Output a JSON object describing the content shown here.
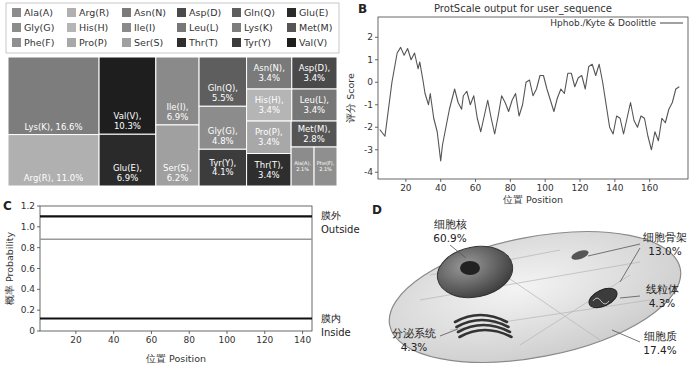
{
  "chart_data": [
    {
      "type": "treemap",
      "categories": [
        "Ala(A)",
        "Arg(R)",
        "Asn(N)",
        "Asp(D)",
        "Gln(Q)",
        "Glu(E)",
        "Gly(G)",
        "His(H)",
        "Ile(I)",
        "Leu(L)",
        "Lys(K)",
        "Met(M)",
        "Phe(F)",
        "Pro(P)",
        "Ser(S)",
        "Thr(T)",
        "Tyr(Y)",
        "Val(V)"
      ],
      "values": [
        2.1,
        11.0,
        3.4,
        3.4,
        5.5,
        6.9,
        4.8,
        3.4,
        6.9,
        3.4,
        16.6,
        2.8,
        2.1,
        3.4,
        6.2,
        3.4,
        4.1,
        10.3
      ],
      "value_labels": [
        "Ala(A), 2.1%",
        "Arg(R), 11.0%",
        "Asn(N), 3.4%",
        "Asp(D), 3.4%",
        "Gln(Q), 5.5%",
        "Glu(E), 6.9%",
        "Gly(G), 4.8%",
        "His(H), 3.4%",
        "Ile(I), 6.9%",
        "Leu(L), 3.4%",
        "Lys(K), 16.6%",
        "Met(M), 2.8%",
        "Phe(F), 2.1%",
        "Pro(P), 3.4%",
        "Ser(S), 6.2%",
        "Thr(T), 3.4%",
        "Tyr(Y), 4.1%",
        "Val(V), 10.3%"
      ],
      "colors": [
        "#8c8c8c",
        "#b0b0b0",
        "#7a7a7a",
        "#4a4a4a",
        "#5e5e5e",
        "#2a2a2a",
        "#8c8c8c",
        "#b5b5b5",
        "#8a8a8a",
        "#777777",
        "#7d7d7d",
        "#555555",
        "#8f8f8f",
        "#a8a8a8",
        "#a0a0a0",
        "#2e2e2e",
        "#3c3c3c",
        "#1e1e1e"
      ],
      "data_labels": true
    },
    {
      "panel": "B",
      "type": "line",
      "title": "ProtScale output for user_sequence",
      "x": [
        5,
        8,
        12,
        15,
        17,
        19,
        21,
        23,
        25,
        27,
        28,
        30,
        31,
        33,
        34,
        36,
        38,
        40,
        41,
        43,
        45,
        47,
        48,
        50,
        52,
        53,
        55,
        57,
        59,
        61,
        63,
        65,
        67,
        69,
        71,
        73,
        75,
        77,
        79,
        81,
        83,
        85,
        87,
        89,
        91,
        93,
        95,
        97,
        99,
        101,
        103,
        105,
        107,
        109,
        111,
        113,
        115,
        117,
        119,
        121,
        123,
        125,
        127,
        129,
        131,
        133,
        135,
        137,
        139,
        141,
        143,
        145,
        147,
        149,
        151,
        153,
        155,
        157,
        159,
        161,
        163,
        165,
        167,
        169,
        171,
        173,
        175,
        177
      ],
      "series": [
        {
          "name": "Hphob./Kyte & Doolittle",
          "color": "#555555",
          "values": [
            -2.1,
            -2.4,
            0.0,
            1.3,
            1.55,
            1.2,
            1.5,
            1.0,
            1.3,
            0.6,
            0.9,
            0.0,
            -0.5,
            -1.0,
            -0.5,
            -1.6,
            -2.2,
            -3.5,
            -2.8,
            -2.0,
            -1.2,
            -0.6,
            -0.3,
            -0.9,
            -1.2,
            -0.6,
            -0.4,
            -1.0,
            -0.6,
            -1.6,
            -2.2,
            -1.5,
            -0.8,
            -1.6,
            -2.3,
            -1.5,
            -0.6,
            -0.9,
            -1.3,
            -0.8,
            -0.5,
            -1.5,
            -1.0,
            0.0,
            0.1,
            -0.6,
            -0.3,
            0.3,
            0.3,
            -0.3,
            -0.8,
            -1.3,
            -0.7,
            -0.3,
            -0.5,
            0.4,
            0.4,
            -0.2,
            0.2,
            0.3,
            -0.3,
            0.7,
            0.8,
            0.3,
            0.8,
            0.0,
            -1.0,
            -2.0,
            -2.3,
            -1.5,
            -1.6,
            -2.3,
            -1.6,
            -0.9,
            -1.7,
            -2.0,
            -1.5,
            -1.6,
            -2.4,
            -3.0,
            -2.2,
            -2.6,
            -1.6,
            -1.8,
            -1.2,
            -0.9,
            -0.3,
            -0.2
          ]
        }
      ],
      "xlim": [
        4,
        182
      ],
      "ylim": [
        -4.3,
        2.9
      ],
      "xticks": [
        20,
        40,
        60,
        80,
        100,
        120,
        140,
        160
      ],
      "yticks": [
        -4,
        -3,
        -2,
        -1,
        0,
        1,
        2
      ],
      "x_label": "位置 Position",
      "y_label": "评分 Score",
      "legend": "upper right"
    },
    {
      "panel": "C",
      "type": "line",
      "x": [
        1,
        145
      ],
      "series": [
        {
          "color": "#111111",
          "values": [
            1.1,
            1.1
          ]
        },
        {
          "color": "#999999",
          "values": [
            0.88,
            0.88
          ]
        },
        {
          "color": "#111111",
          "values": [
            0.12,
            0.12
          ]
        }
      ],
      "xlim": [
        1,
        145
      ],
      "ylim": [
        0,
        1.2
      ],
      "xticks": [
        20,
        40,
        60,
        80,
        100,
        120,
        140
      ],
      "yticks": [
        0,
        0.2,
        0.4,
        0.6,
        0.8,
        {
          "value": 1,
          "label": "1.0"
        },
        1.2
      ],
      "x_label": "位置 Position",
      "y_label": "概率 Probability",
      "annotations": [
        [
          "膜外",
          "Outside"
        ],
        [
          "膜内",
          "Inside"
        ]
      ]
    },
    {
      "panel": "D",
      "type": "cell_diagram",
      "categories": [
        "细胞核",
        "细胞骨架",
        "线粒体",
        "细胞质",
        "分泌系统"
      ],
      "values": [
        60.9,
        13.0,
        4.3,
        17.4,
        4.3
      ],
      "value_labels": [
        "60.9%",
        "13.0%",
        "4.3%",
        "17.4%",
        "4.3%"
      ]
    }
  ]
}
